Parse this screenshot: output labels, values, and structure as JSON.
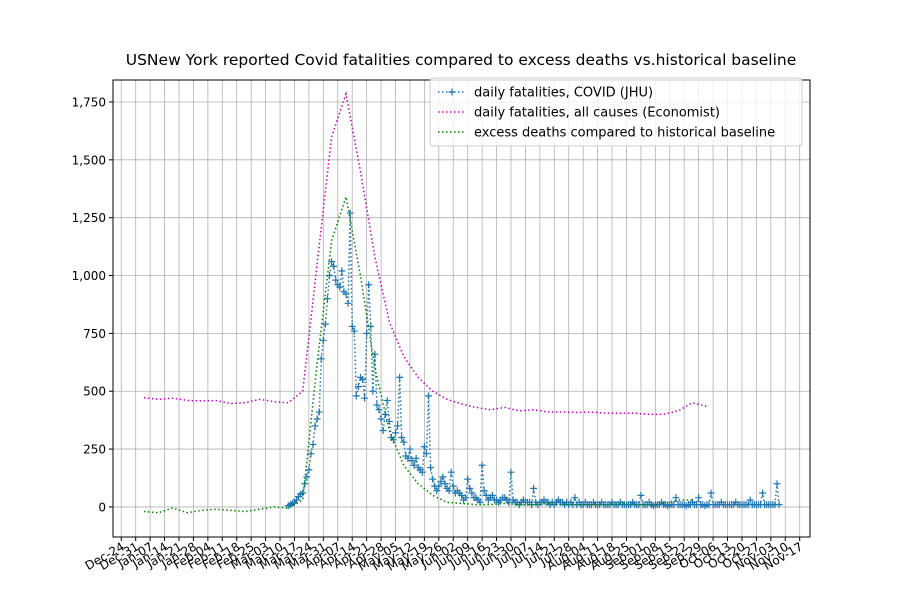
{
  "chart_data": {
    "type": "line",
    "title": "USNew York reported Covid fatalities compared to excess deaths vs.historical baseline",
    "legend": "upper right",
    "grid": true,
    "xlim": [
      "Dec-20",
      "Nov-22"
    ],
    "ylim": [
      -130,
      1845
    ],
    "yticks": [
      0,
      250,
      500,
      750,
      {
        "value": 1000,
        "label": "1,000"
      },
      {
        "value": 1250,
        "label": "1,250"
      },
      {
        "value": 1500,
        "label": "1,500"
      },
      {
        "value": 1750,
        "label": "1,750"
      }
    ],
    "xticks": [
      "Dec-24",
      "Dec-31",
      "Jan-07",
      "Jan-14",
      "Jan-21",
      "Jan-28",
      "Feb-04",
      "Feb-11",
      "Feb-18",
      "Feb-25",
      "Mar-03",
      "Mar-10",
      "Mar-17",
      "Mar-24",
      "Mar-31",
      "Apr-07",
      "Apr-14",
      "Apr-21",
      "Apr-28",
      "May-05",
      "May-12",
      "May-19",
      "May-26",
      "Jun-02",
      "Jun-09",
      "Jun-16",
      "Jun-23",
      "Jun-30",
      "Jul-07",
      "Jul-14",
      "Jul-21",
      "Jul-28",
      "Aug-04",
      "Aug-11",
      "Aug-18",
      "Aug-25",
      "Sep-01",
      "Sep-08",
      "Sep-15",
      "Sep-22",
      "Sep-29",
      "Oct-06",
      "Oct-13",
      "Oct-20",
      "Oct-27",
      "Nov-03",
      "Nov-10",
      "Nov-17"
    ],
    "series": [
      {
        "name": "daily fatalities, COVID (JHU)",
        "color": "#1f77b4",
        "marker": "+",
        "linestyle": "dotted",
        "x": [
          "Mar-14",
          "Mar-15",
          "Mar-16",
          "Mar-17",
          "Mar-18",
          "Mar-19",
          "Mar-20",
          "Mar-21",
          "Mar-22",
          "Mar-23",
          "Mar-24",
          "Mar-25",
          "Mar-26",
          "Mar-27",
          "Mar-28",
          "Mar-29",
          "Mar-30",
          "Mar-31",
          "Apr-01",
          "Apr-02",
          "Apr-03",
          "Apr-04",
          "Apr-05",
          "Apr-06",
          "Apr-07",
          "Apr-08",
          "Apr-09",
          "Apr-10",
          "Apr-11",
          "Apr-12",
          "Apr-13",
          "Apr-14",
          "Apr-15",
          "Apr-16",
          "Apr-17",
          "Apr-18",
          "Apr-19",
          "Apr-20",
          "Apr-21",
          "Apr-22",
          "Apr-23",
          "Apr-24",
          "Apr-25",
          "Apr-26",
          "Apr-27",
          "Apr-28",
          "Apr-29",
          "Apr-30",
          "May-01",
          "May-02",
          "May-03",
          "May-04",
          "May-05",
          "May-06",
          "May-07",
          "May-08",
          "May-09",
          "May-10",
          "May-11",
          "May-12",
          "May-13",
          "May-14",
          "May-15",
          "May-16",
          "May-17",
          "May-18",
          "May-19",
          "May-20",
          "May-21",
          "May-22",
          "May-23",
          "May-24",
          "May-25",
          "May-26",
          "May-27",
          "May-28",
          "May-29",
          "May-30",
          "May-31",
          "Jun-01",
          "Jun-02",
          "Jun-03",
          "Jun-04",
          "Jun-05",
          "Jun-06",
          "Jun-07",
          "Jun-08",
          "Jun-09",
          "Jun-10",
          "Jun-11",
          "Jun-12",
          "Jun-13",
          "Jun-14",
          "Jun-15",
          "Jun-16",
          "Jun-17",
          "Jun-18",
          "Jun-19",
          "Jun-20",
          "Jun-21",
          "Jun-22",
          "Jun-23",
          "Jun-24",
          "Jun-25",
          "Jun-26",
          "Jun-27",
          "Jun-28",
          "Jun-29",
          "Jun-30",
          "Jul-01",
          "Jul-02",
          "Jul-03",
          "Jul-04",
          "Jul-05",
          "Jul-06",
          "Jul-07",
          "Jul-08",
          "Jul-09",
          "Jul-10",
          "Jul-11",
          "Jul-12",
          "Jul-13",
          "Jul-14",
          "Jul-15",
          "Jul-16",
          "Jul-17",
          "Jul-18",
          "Jul-19",
          "Jul-20",
          "Jul-21",
          "Jul-22",
          "Jul-23",
          "Jul-24",
          "Jul-25",
          "Jul-26",
          "Jul-27",
          "Jul-28",
          "Jul-29",
          "Jul-30",
          "Jul-31",
          "Aug-01",
          "Aug-02",
          "Aug-03",
          "Aug-04",
          "Aug-05",
          "Aug-06",
          "Aug-07",
          "Aug-08",
          "Aug-09",
          "Aug-10",
          "Aug-11",
          "Aug-12",
          "Aug-13",
          "Aug-14",
          "Aug-15",
          "Aug-16",
          "Aug-17",
          "Aug-18",
          "Aug-19",
          "Aug-20",
          "Aug-21",
          "Aug-22",
          "Aug-23",
          "Aug-24",
          "Aug-25",
          "Aug-26",
          "Aug-27",
          "Aug-28",
          "Aug-29",
          "Aug-30",
          "Aug-31",
          "Sep-01",
          "Sep-02",
          "Sep-03",
          "Sep-04",
          "Sep-05",
          "Sep-06",
          "Sep-07",
          "Sep-08",
          "Sep-09",
          "Sep-10",
          "Sep-11",
          "Sep-12",
          "Sep-13",
          "Sep-14",
          "Sep-15",
          "Sep-16",
          "Sep-17",
          "Sep-18",
          "Sep-19",
          "Sep-20",
          "Sep-21",
          "Sep-22",
          "Sep-23",
          "Sep-24",
          "Sep-25",
          "Sep-26",
          "Sep-27",
          "Sep-28",
          "Sep-29",
          "Sep-30",
          "Oct-01",
          "Oct-02",
          "Oct-03",
          "Oct-04",
          "Oct-05",
          "Oct-06",
          "Oct-07",
          "Oct-08",
          "Oct-09",
          "Oct-10",
          "Oct-11",
          "Oct-12",
          "Oct-13",
          "Oct-14",
          "Oct-15",
          "Oct-16",
          "Oct-17",
          "Oct-18",
          "Oct-19",
          "Oct-20",
          "Oct-21",
          "Oct-22",
          "Oct-23",
          "Oct-24",
          "Oct-25",
          "Oct-26",
          "Oct-27",
          "Oct-28",
          "Oct-29",
          "Oct-30",
          "Oct-31",
          "Nov-01",
          "Nov-02",
          "Nov-03",
          "Nov-04",
          "Nov-05",
          "Nov-06",
          "Nov-07"
        ],
        "values": [
          5,
          10,
          15,
          20,
          30,
          45,
          55,
          60,
          100,
          130,
          160,
          230,
          270,
          350,
          380,
          410,
          640,
          720,
          790,
          900,
          1000,
          1060,
          1040,
          980,
          960,
          950,
          1020,
          930,
          920,
          880,
          1270,
          780,
          760,
          480,
          520,
          560,
          550,
          470,
          750,
          960,
          780,
          500,
          660,
          440,
          420,
          380,
          330,
          400,
          460,
          370,
          300,
          290,
          320,
          350,
          560,
          300,
          280,
          220,
          210,
          250,
          200,
          180,
          210,
          170,
          160,
          150,
          260,
          230,
          480,
          170,
          120,
          90,
          70,
          90,
          110,
          130,
          100,
          80,
          70,
          150,
          90,
          60,
          70,
          60,
          50,
          30,
          40,
          120,
          80,
          60,
          40,
          40,
          30,
          20,
          180,
          70,
          50,
          30,
          40,
          50,
          30,
          30,
          20,
          30,
          40,
          40,
          30,
          20,
          150,
          30,
          20,
          20,
          10,
          20,
          30,
          20,
          20,
          20,
          10,
          80,
          20,
          10,
          20,
          20,
          30,
          20,
          20,
          10,
          20,
          10,
          20,
          30,
          20,
          20,
          10,
          20,
          10,
          20,
          10,
          40,
          10,
          20,
          10,
          10,
          20,
          10,
          10,
          10,
          20,
          10,
          10,
          10,
          20,
          10,
          10,
          10,
          10,
          20,
          10,
          10,
          10,
          20,
          10,
          10,
          10,
          10,
          10,
          20,
          10,
          10,
          10,
          50,
          10,
          10,
          10,
          20,
          10,
          5,
          10,
          10,
          10,
          20,
          10,
          10,
          5,
          10,
          10,
          10,
          40,
          10,
          10,
          10,
          10,
          5,
          10,
          10,
          20,
          10,
          10,
          40,
          10,
          10,
          5,
          10,
          10,
          60,
          10,
          10,
          10,
          10,
          20,
          10,
          10,
          10,
          10,
          10,
          10,
          20,
          10,
          10,
          10,
          10,
          10,
          10,
          30,
          10,
          10,
          10,
          10,
          10,
          60,
          10,
          10,
          10,
          10,
          10,
          10,
          100,
          10
        ]
      },
      {
        "name": "daily fatalities, all causes (Economist)",
        "color": "#bf00bf",
        "linestyle": "dotted",
        "x": [
          "Jan-04",
          "Jan-11",
          "Jan-18",
          "Jan-25",
          "Feb-01",
          "Feb-08",
          "Feb-15",
          "Feb-22",
          "Feb-29",
          "Mar-07",
          "Mar-14",
          "Mar-21",
          "Mar-28",
          "Apr-04",
          "Apr-11",
          "Apr-18",
          "Apr-25",
          "May-02",
          "May-09",
          "May-16",
          "May-23",
          "May-30",
          "Jun-06",
          "Jun-13",
          "Jun-20",
          "Jun-27",
          "Jul-04",
          "Jul-11",
          "Jul-18",
          "Jul-25",
          "Aug-01",
          "Aug-08",
          "Aug-15",
          "Aug-22",
          "Aug-29",
          "Sep-05",
          "Sep-12",
          "Sep-19",
          "Sep-26",
          "Oct-03"
        ],
        "values": [
          472,
          465,
          470,
          460,
          458,
          460,
          447,
          450,
          465,
          455,
          450,
          500,
          1050,
          1600,
          1785,
          1450,
          1080,
          800,
          650,
          560,
          500,
          465,
          445,
          430,
          420,
          430,
          415,
          420,
          410,
          410,
          408,
          410,
          405,
          405,
          405,
          400,
          400,
          415,
          450,
          435
        ]
      },
      {
        "name": "excess deaths compared to historical baseline",
        "color": "#008000",
        "linestyle": "dotted",
        "x": [
          "Jan-04",
          "Jan-11",
          "Jan-18",
          "Jan-25",
          "Feb-01",
          "Feb-08",
          "Feb-15",
          "Feb-22",
          "Feb-29",
          "Mar-07",
          "Mar-14",
          "Mar-21",
          "Mar-28",
          "Apr-04",
          "Apr-11",
          "Apr-18",
          "Apr-25",
          "May-02",
          "May-09",
          "May-16",
          "May-23",
          "May-30",
          "Jun-06",
          "Jun-13",
          "Jun-20",
          "Jun-27",
          "Jul-04",
          "Jul-11",
          "Jul-18",
          "Jul-25",
          "Aug-01",
          "Aug-08",
          "Aug-15",
          "Aug-22",
          "Aug-29",
          "Sep-05",
          "Sep-12",
          "Sep-19",
          "Sep-26"
        ],
        "values": [
          -20,
          -25,
          -5,
          -25,
          -15,
          -10,
          -15,
          -20,
          -10,
          0,
          -5,
          30,
          620,
          1150,
          1340,
          1000,
          600,
          330,
          180,
          100,
          50,
          20,
          15,
          10,
          10,
          15,
          10,
          10,
          15,
          10,
          10,
          10,
          10,
          15,
          10,
          10,
          15,
          30,
          30
        ]
      }
    ]
  }
}
